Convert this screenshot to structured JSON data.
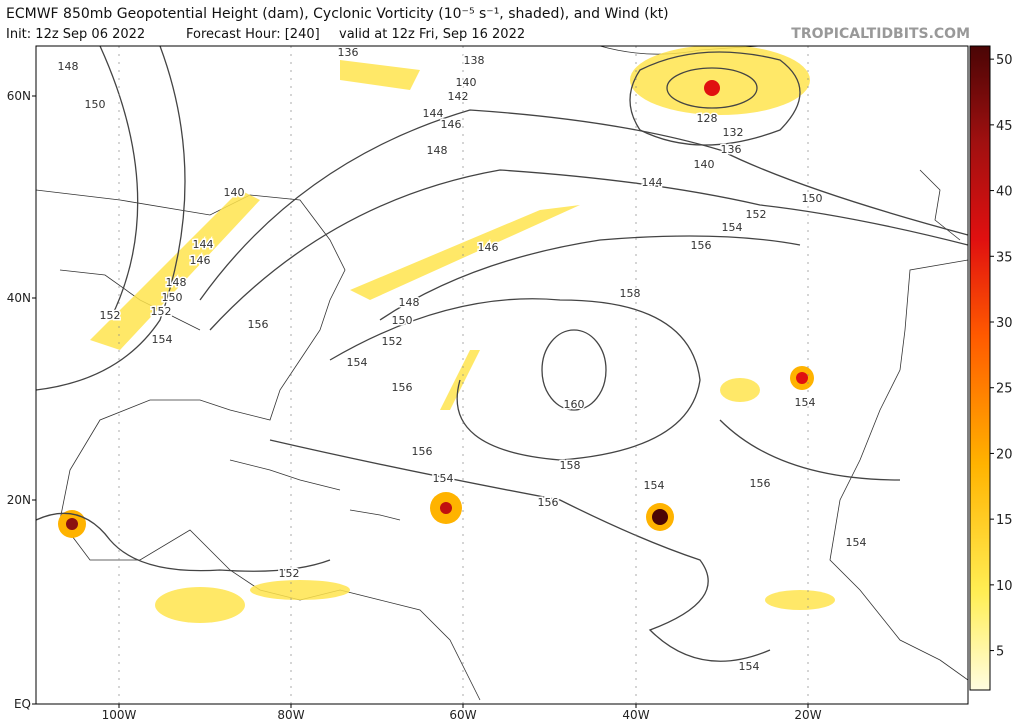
{
  "header": {
    "title": "ECMWF 850mb Geopotential Height (dam), Cyclonic Vorticity (10⁻⁵ s⁻¹, shaded), and Wind (kt)",
    "init": "Init: 12z Sep 06 2022",
    "forecast_hour": "Forecast Hour: [240]",
    "valid": "valid at 12z Fri, Sep 16 2022",
    "site": "TROPICALTIDBITS.COM"
  },
  "map": {
    "lat_labels": [
      "60N",
      "40N",
      "20N",
      "EQ"
    ],
    "lon_labels": [
      "100W",
      "80W",
      "60W",
      "40W",
      "20W"
    ],
    "contour_labels": [
      "136",
      "138",
      "140",
      "142",
      "144",
      "146",
      "148",
      "150",
      "148",
      "140",
      "144",
      "146",
      "148",
      "150",
      "152",
      "152",
      "154",
      "156",
      "148",
      "150",
      "152",
      "154",
      "156",
      "146",
      "144",
      "140",
      "136",
      "132",
      "128",
      "152",
      "150",
      "154",
      "156",
      "158",
      "160",
      "156",
      "158",
      "156",
      "154",
      "154",
      "156",
      "154",
      "154",
      "152",
      "154"
    ]
  },
  "colorbar": {
    "range": [
      2,
      51
    ],
    "ticks": [
      5,
      10,
      15,
      20,
      25,
      30,
      35,
      40,
      45,
      50
    ]
  }
}
